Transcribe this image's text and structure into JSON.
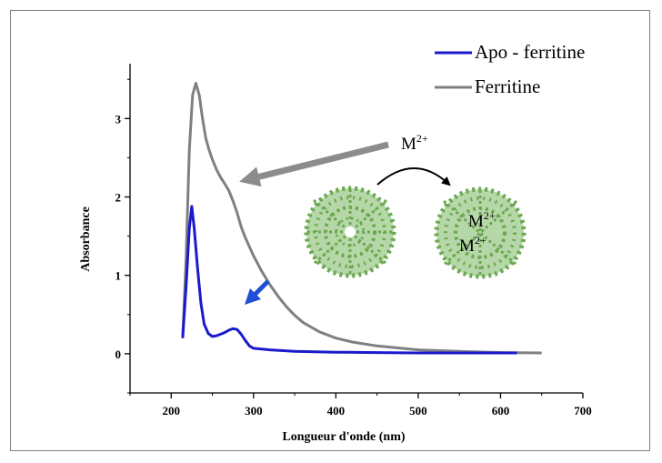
{
  "chart_data": {
    "type": "line",
    "xlabel": "Longueur d'onde (nm)",
    "ylabel": "Absorbance",
    "xlim": [
      150,
      700
    ],
    "ylim": [
      -0.5,
      3.7
    ],
    "x_ticks": [
      200,
      300,
      400,
      500,
      600,
      700
    ],
    "y_ticks": [
      0,
      1,
      2,
      3
    ],
    "grid": false,
    "legend_position": "top-right",
    "series": [
      {
        "name": "Apo - ferritine",
        "color": "#1a1acc",
        "x": [
          214,
          218,
          222,
          225,
          228,
          232,
          236,
          240,
          245,
          250,
          255,
          260,
          265,
          270,
          275,
          280,
          285,
          290,
          295,
          300,
          320,
          350,
          400,
          450,
          500,
          550,
          600,
          620
        ],
        "y": [
          0.2,
          0.85,
          1.6,
          1.88,
          1.6,
          1.1,
          0.65,
          0.38,
          0.26,
          0.22,
          0.23,
          0.25,
          0.27,
          0.3,
          0.32,
          0.31,
          0.25,
          0.17,
          0.1,
          0.07,
          0.05,
          0.03,
          0.02,
          0.015,
          0.01,
          0.01,
          0.01,
          0.01
        ]
      },
      {
        "name": "Ferritine",
        "color": "#808080",
        "x": [
          214,
          218,
          222,
          226,
          230,
          234,
          238,
          242,
          246,
          250,
          255,
          260,
          265,
          270,
          275,
          280,
          285,
          290,
          300,
          310,
          320,
          330,
          340,
          350,
          360,
          380,
          400,
          420,
          450,
          480,
          500,
          550,
          600,
          650
        ],
        "y": [
          0.2,
          1.2,
          2.6,
          3.3,
          3.45,
          3.3,
          3.0,
          2.75,
          2.6,
          2.48,
          2.35,
          2.25,
          2.17,
          2.08,
          1.95,
          1.8,
          1.62,
          1.48,
          1.25,
          1.05,
          0.88,
          0.73,
          0.6,
          0.49,
          0.4,
          0.28,
          0.2,
          0.15,
          0.1,
          0.07,
          0.05,
          0.03,
          0.015,
          0.01
        ]
      }
    ],
    "annotations": {
      "arrow_label_base": "M",
      "arrow_label_sup": "2+",
      "sphere_label_1_base": "M",
      "sphere_label_1_sup": "2+",
      "sphere_label_2_base": "M",
      "sphere_label_2_sup": "2+"
    }
  },
  "colors": {
    "arrow_gray": "#8c8c8c",
    "arrow_blue": "#1f4fd6",
    "protein_green": "#6aa84f",
    "protein_light": "#b6d7a8"
  }
}
